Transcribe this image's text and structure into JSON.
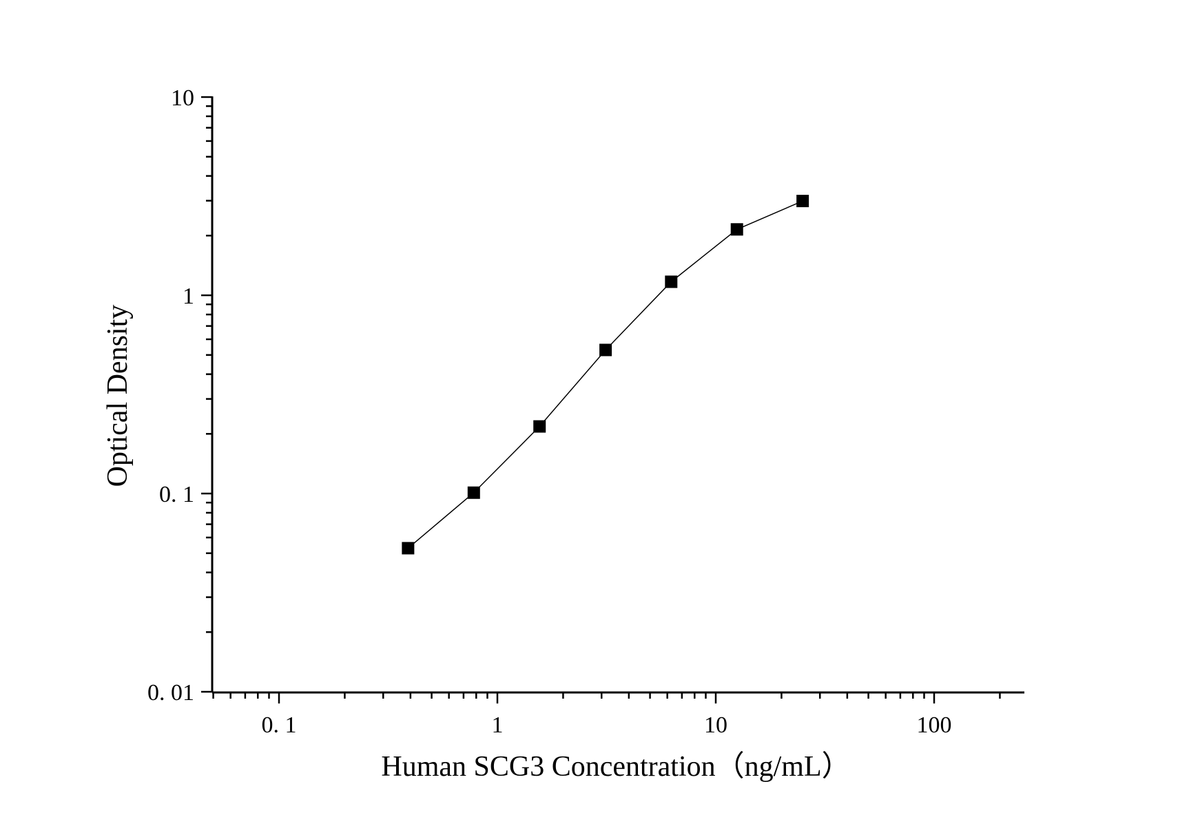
{
  "chart_data": {
    "type": "line",
    "title": "",
    "xlabel": "Human SCG3 Concentration（ng/mL）",
    "ylabel": "Optical Density",
    "x_scale": "log",
    "y_scale": "log",
    "xlim": [
      0.05,
      250
    ],
    "ylim": [
      0.01,
      10
    ],
    "x_ticks": [
      {
        "value": 0.1,
        "label": "0. 1"
      },
      {
        "value": 1,
        "label": "1"
      },
      {
        "value": 10,
        "label": "10"
      },
      {
        "value": 100,
        "label": "100"
      }
    ],
    "y_ticks": [
      {
        "value": 0.01,
        "label": "0. 01"
      },
      {
        "value": 0.1,
        "label": "0. 1"
      },
      {
        "value": 1,
        "label": "1"
      },
      {
        "value": 10,
        "label": "10"
      }
    ],
    "grid": false,
    "legend": "none",
    "marker": "square",
    "series": [
      {
        "color": "#000000",
        "x": [
          0.39,
          0.78,
          1.56,
          3.13,
          6.25,
          12.5,
          25
        ],
        "y": [
          0.053,
          0.101,
          0.218,
          0.53,
          1.17,
          2.15,
          2.99
        ]
      }
    ]
  }
}
